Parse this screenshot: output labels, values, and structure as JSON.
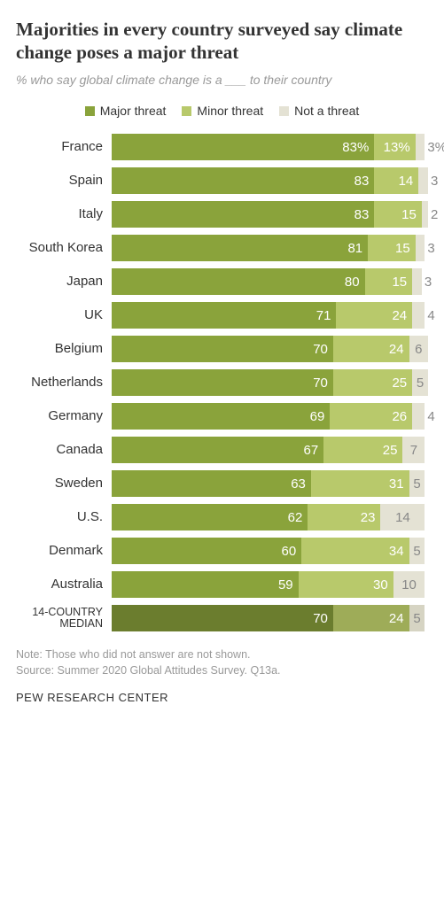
{
  "title": "Majorities in every country surveyed say climate change poses a major threat",
  "subtitle_pre": "% who say global climate change is a ",
  "subtitle_blank": "___",
  "subtitle_post": " to their country",
  "legend": {
    "major": "Major threat",
    "minor": "Minor threat",
    "none": "Not a threat"
  },
  "colors": {
    "major": "#8aa33b",
    "minor": "#b8c96b",
    "none": "#e4e2d4",
    "median_major": "#6b7d2e",
    "median_minor": "#9eac58",
    "median_none": "#d6d4c3",
    "bg": "#ffffff",
    "text": "#333333",
    "subtext": "#999999"
  },
  "first_row_suffix": "%",
  "bar_scale": 100,
  "rows": [
    {
      "label": "France",
      "major": 83,
      "minor": 13,
      "none": 3
    },
    {
      "label": "Spain",
      "major": 83,
      "minor": 14,
      "none": 3
    },
    {
      "label": "Italy",
      "major": 83,
      "minor": 15,
      "none": 2
    },
    {
      "label": "South Korea",
      "major": 81,
      "minor": 15,
      "none": 3
    },
    {
      "label": "Japan",
      "major": 80,
      "minor": 15,
      "none": 3
    },
    {
      "label": "UK",
      "major": 71,
      "minor": 24,
      "none": 4
    },
    {
      "label": "Belgium",
      "major": 70,
      "minor": 24,
      "none": 6
    },
    {
      "label": "Netherlands",
      "major": 70,
      "minor": 25,
      "none": 5
    },
    {
      "label": "Germany",
      "major": 69,
      "minor": 26,
      "none": 4
    },
    {
      "label": "Canada",
      "major": 67,
      "minor": 25,
      "none": 7
    },
    {
      "label": "Sweden",
      "major": 63,
      "minor": 31,
      "none": 5
    },
    {
      "label": "U.S.",
      "major": 62,
      "minor": 23,
      "none": 14
    },
    {
      "label": "Denmark",
      "major": 60,
      "minor": 34,
      "none": 5
    },
    {
      "label": "Australia",
      "major": 59,
      "minor": 30,
      "none": 10
    }
  ],
  "median": {
    "label": "14-COUNTRY MEDIAN",
    "major": 70,
    "minor": 24,
    "none": 5
  },
  "note": "Note: Those who did not answer are not shown.",
  "source": "Source: Summer 2020 Global Attitudes Survey. Q13a.",
  "footer": "PEW RESEARCH CENTER"
}
